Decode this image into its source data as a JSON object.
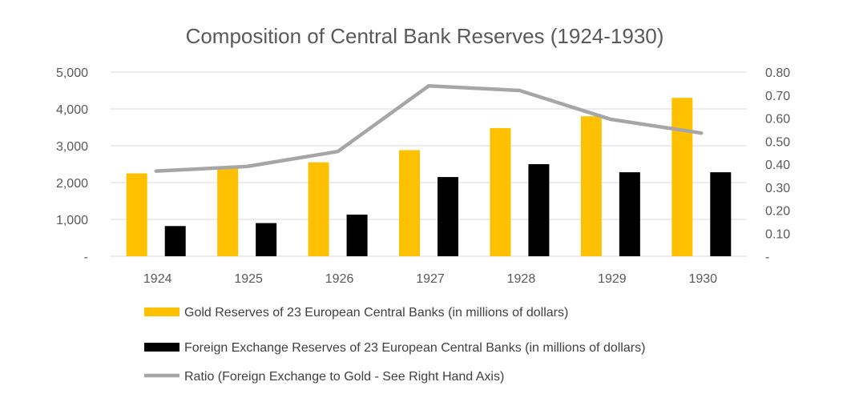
{
  "chart_data": {
    "type": "bar",
    "title": "Composition of Central Bank Reserves (1924-1930)",
    "categories": [
      "1924",
      "1925",
      "1926",
      "1927",
      "1928",
      "1929",
      "1930"
    ],
    "series": [
      {
        "name": "Gold Reserves of 23 European Central Banks (in millions of dollars)",
        "type": "bar",
        "axis": "left",
        "color": "#FFC000",
        "values": [
          2250,
          2400,
          2550,
          2880,
          3480,
          3800,
          4300
        ]
      },
      {
        "name": "Foreign Exchange Reserves of 23 European Central Banks (in millions of dollars)",
        "type": "bar",
        "axis": "left",
        "color": "#000000",
        "values": [
          820,
          900,
          1130,
          2150,
          2500,
          2280,
          2280
        ]
      },
      {
        "name": "Ratio (Foreign Exchange to Gold - See Right Hand Axis)",
        "type": "line",
        "axis": "right",
        "color": "#A6A6A6",
        "values": [
          0.37,
          0.39,
          0.455,
          0.74,
          0.72,
          0.595,
          0.535
        ]
      }
    ],
    "y_left": {
      "lim": [
        0,
        5000
      ],
      "ticks": [
        0,
        1000,
        2000,
        3000,
        4000,
        5000
      ],
      "tick_labels": [
        "-",
        "1,000",
        "2,000",
        "3,000",
        "4,000",
        "5,000"
      ]
    },
    "y_right": {
      "lim": [
        0,
        0.8
      ],
      "ticks": [
        0,
        0.1,
        0.2,
        0.3,
        0.4,
        0.5,
        0.6,
        0.7,
        0.8
      ],
      "tick_labels": [
        "-",
        "0.10",
        "0.20",
        "0.30",
        "0.40",
        "0.50",
        "0.60",
        "0.70",
        "0.80"
      ]
    },
    "grid": true,
    "legend_position": "bottom"
  }
}
